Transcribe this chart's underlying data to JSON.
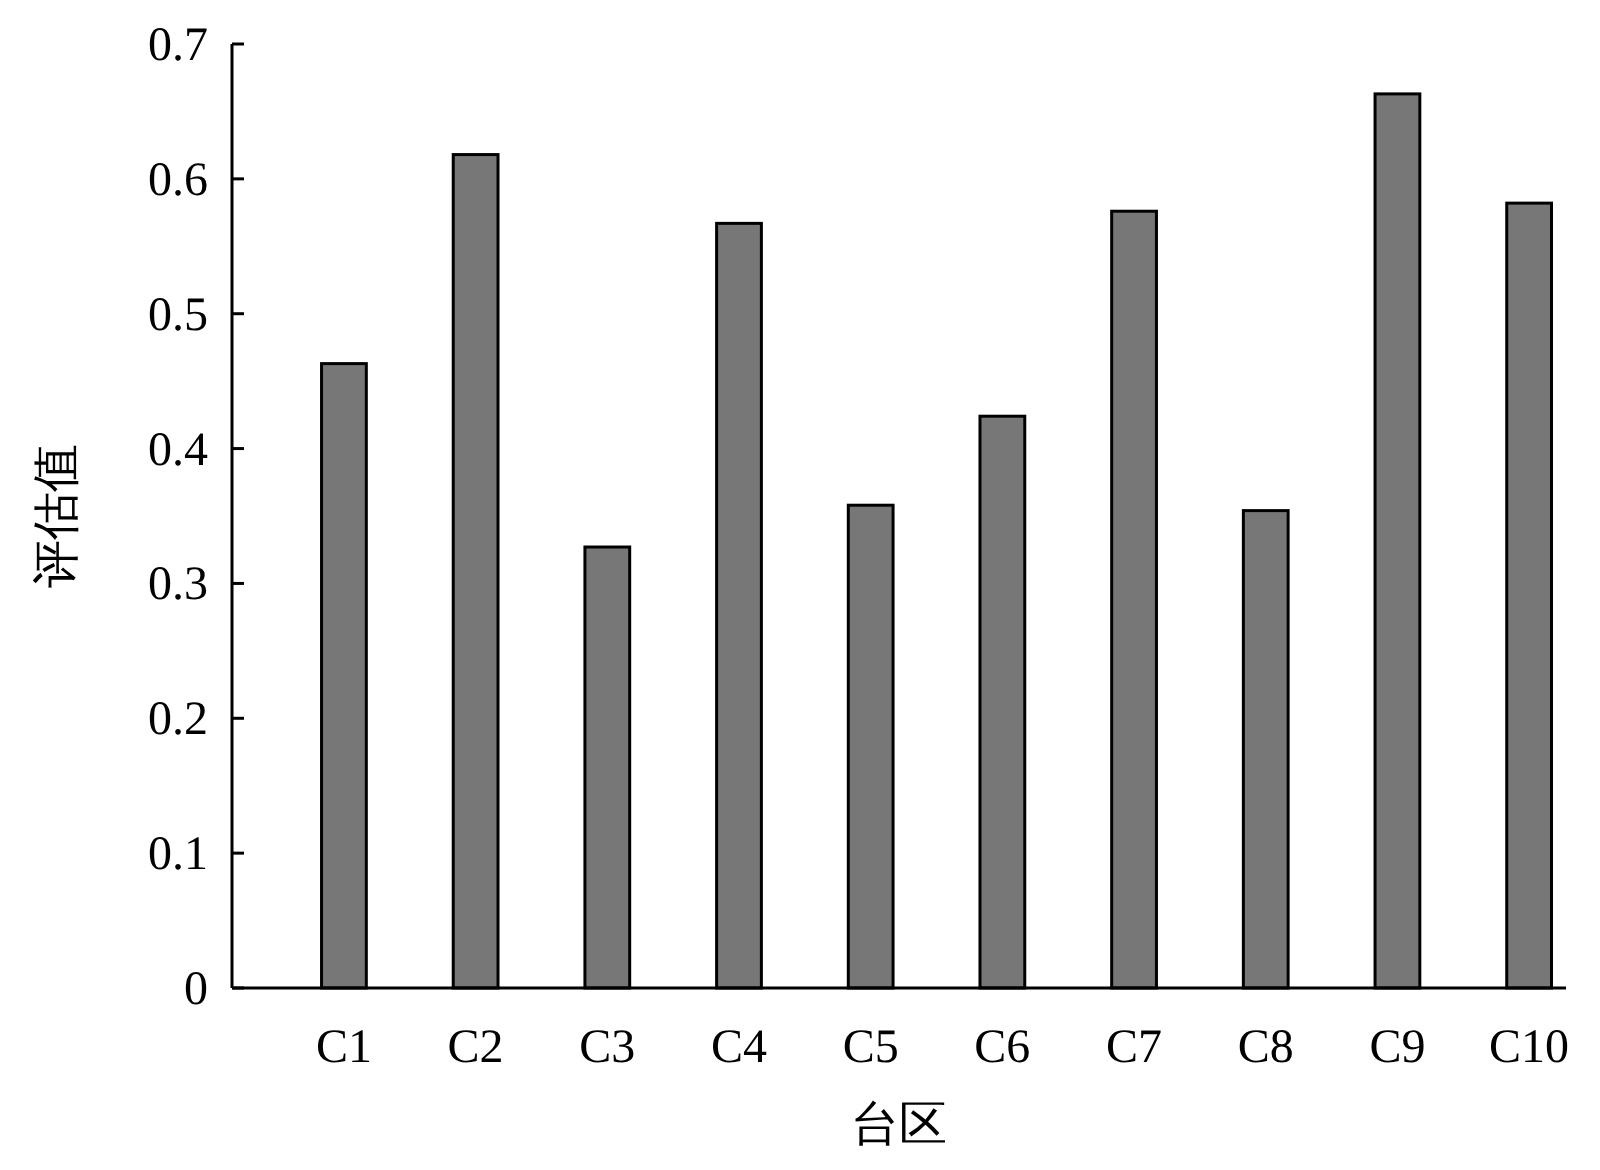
{
  "chart_data": {
    "type": "bar",
    "xlabel": "台区",
    "ylabel": "评估值",
    "categories": [
      "C1",
      "C2",
      "C3",
      "C4",
      "C5",
      "C6",
      "C7",
      "C8",
      "C9",
      "C10"
    ],
    "values": [
      0.463,
      0.618,
      0.327,
      0.567,
      0.358,
      0.424,
      0.576,
      0.354,
      0.663,
      0.582
    ],
    "color": "#777777",
    "ylim": [
      0,
      0.7
    ],
    "yticks": [
      0,
      0.1,
      0.2,
      0.3,
      0.4,
      0.5,
      0.6,
      0.7
    ]
  }
}
